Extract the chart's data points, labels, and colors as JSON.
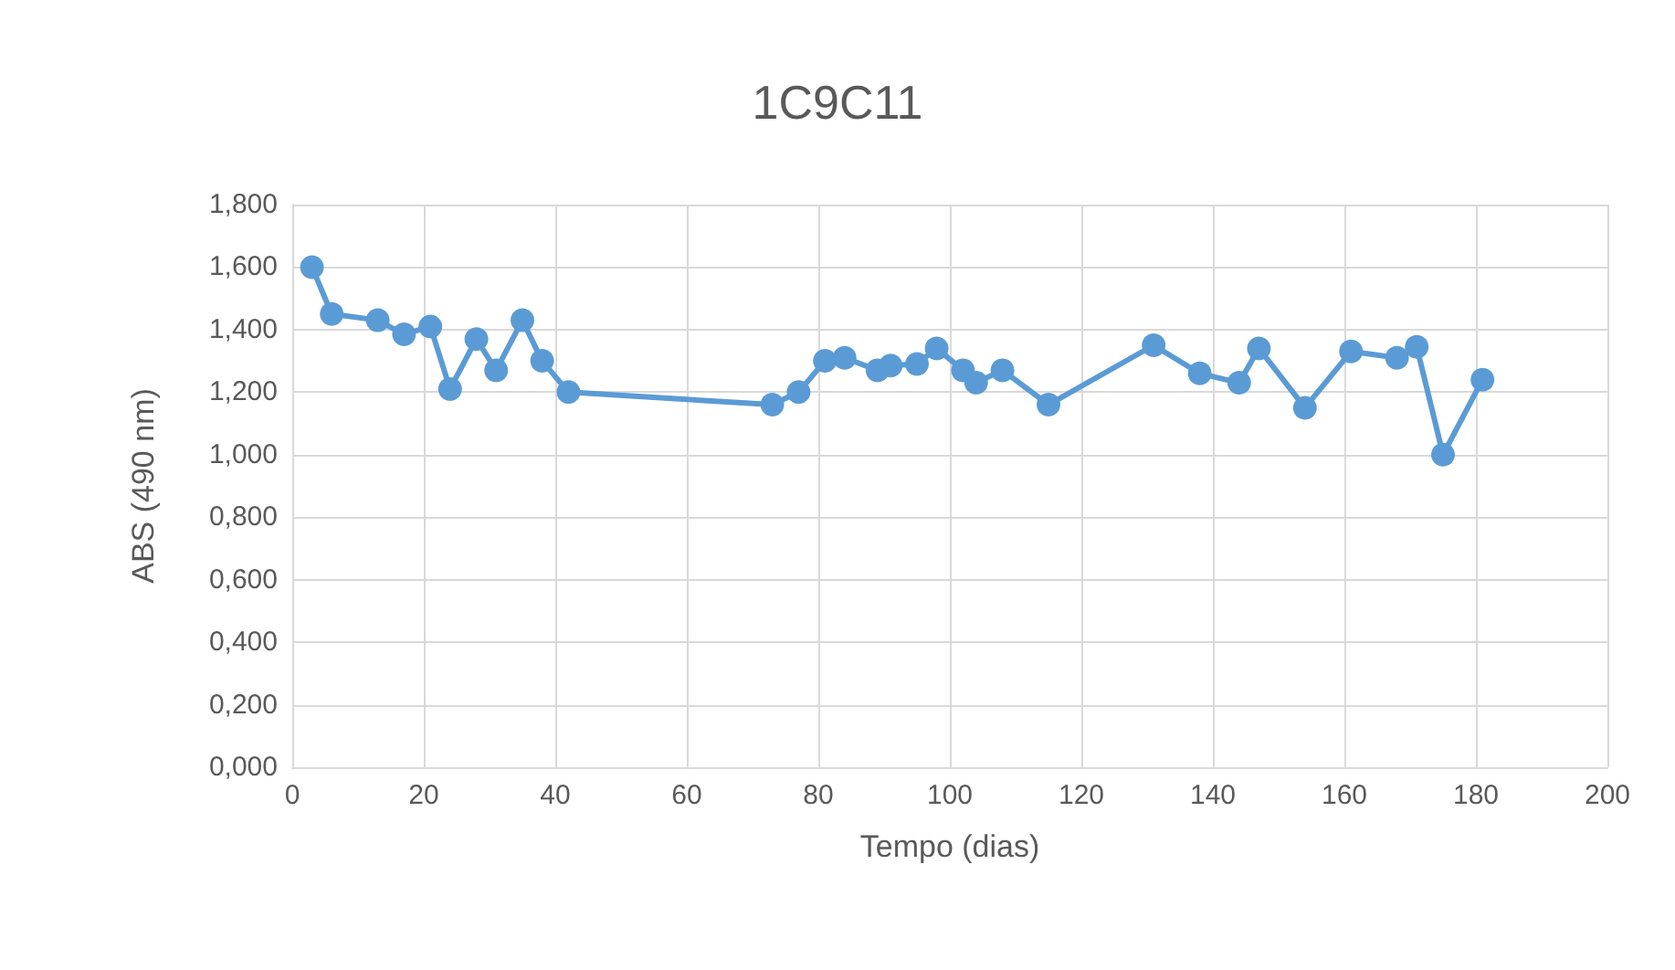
{
  "chart_data": {
    "type": "line",
    "title": "1C9C11",
    "xlabel": "Tempo (dias)",
    "ylabel": "ABS (490 nm)",
    "x": [
      3,
      6,
      13,
      17,
      21,
      24,
      28,
      31,
      35,
      38,
      42,
      73,
      77,
      81,
      84,
      89,
      91,
      95,
      98,
      102,
      104,
      108,
      115,
      131,
      138,
      144,
      147,
      154,
      161,
      168,
      171,
      175,
      181
    ],
    "series": [
      {
        "color": "#5b9bd5",
        "values": [
          1.6,
          1.45,
          1.43,
          1.385,
          1.41,
          1.21,
          1.37,
          1.27,
          1.43,
          1.3,
          1.2,
          1.16,
          1.2,
          1.3,
          1.31,
          1.27,
          1.285,
          1.29,
          1.34,
          1.27,
          1.23,
          1.27,
          1.16,
          1.35,
          1.26,
          1.23,
          1.34,
          1.15,
          1.33,
          1.31,
          1.345,
          1.0,
          1.24
        ]
      }
    ],
    "xlim": [
      0,
      200
    ],
    "xticks": [
      0,
      20,
      40,
      60,
      80,
      100,
      120,
      140,
      160,
      180,
      200
    ],
    "ylim": [
      0,
      1.8
    ],
    "yticks": [
      {
        "value": 0,
        "label": "0,000"
      },
      {
        "value": 0.2,
        "label": "0,200"
      },
      {
        "value": 0.4,
        "label": "0,400"
      },
      {
        "value": 0.6,
        "label": "0,600"
      },
      {
        "value": 0.8,
        "label": "0,800"
      },
      {
        "value": 1,
        "label": "1,000"
      },
      {
        "value": 1.2,
        "label": "1,200"
      },
      {
        "value": 1.4,
        "label": "1,400"
      },
      {
        "value": 1.6,
        "label": "1,600"
      },
      {
        "value": 1.8,
        "label": "1,800"
      }
    ],
    "grid": true,
    "marker": "circle",
    "line_style": "solid"
  }
}
